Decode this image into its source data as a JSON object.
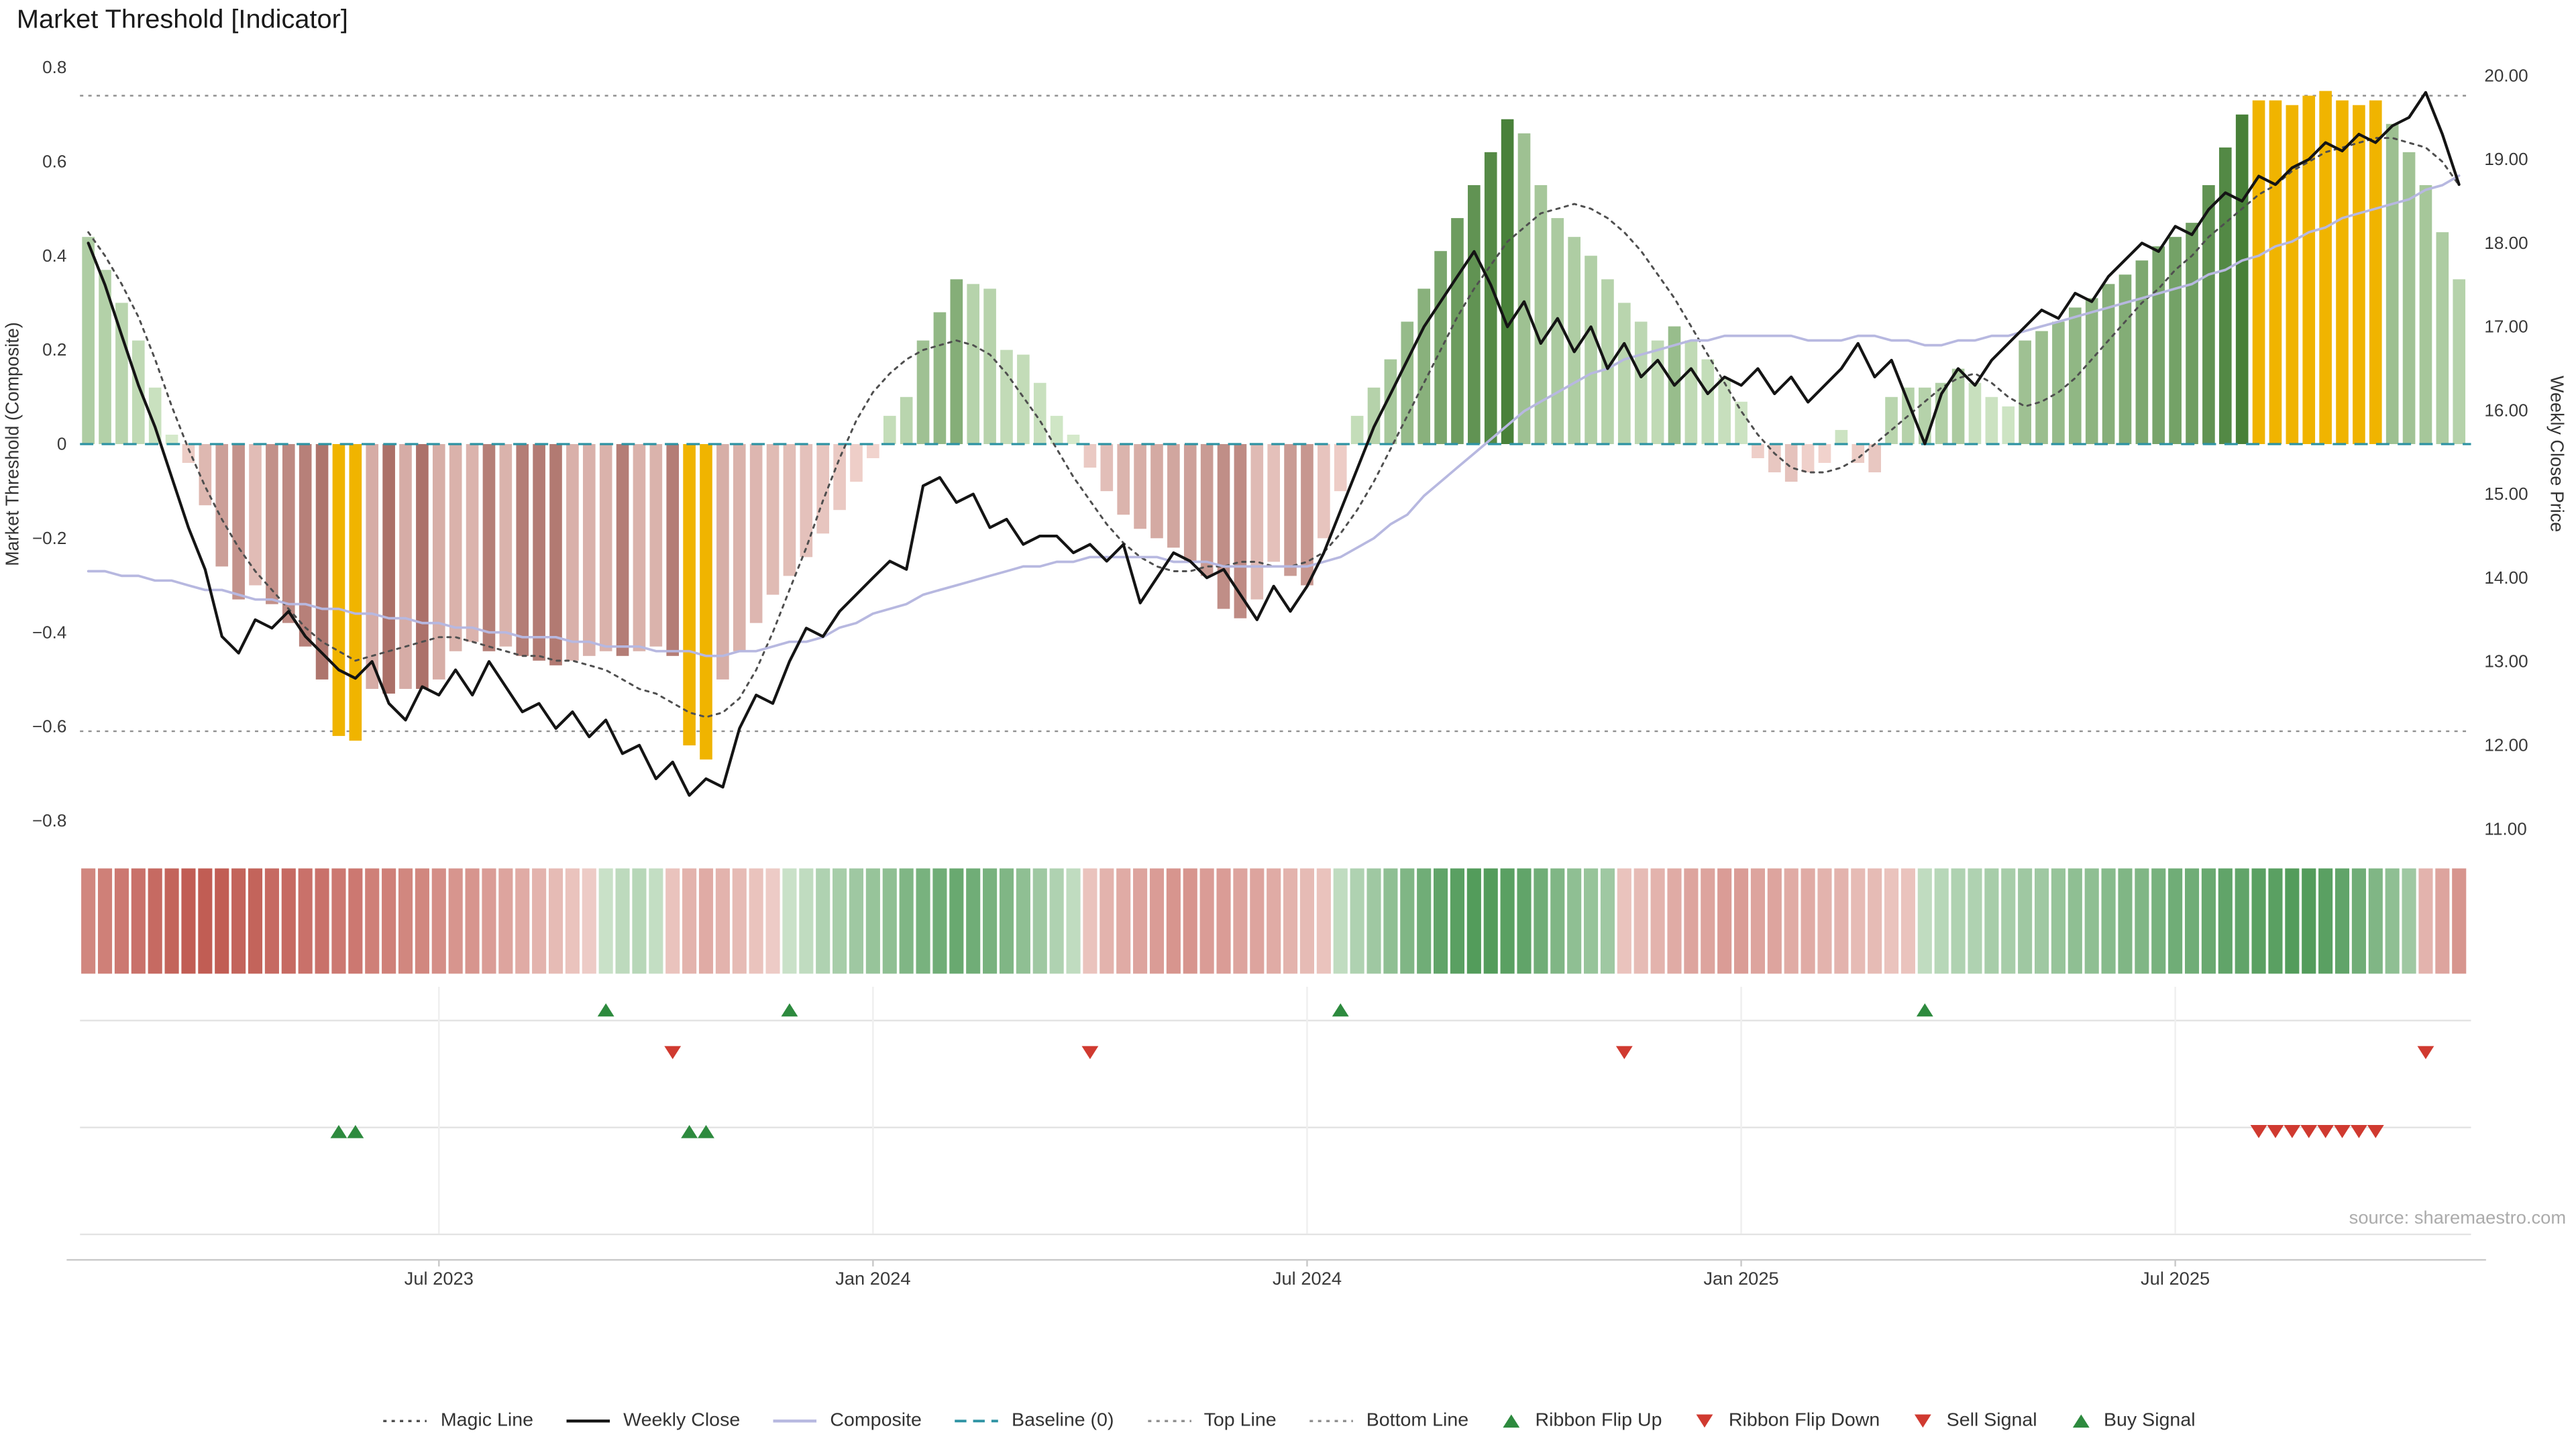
{
  "title": "Market Threshold [Indicator]",
  "source_text": "source: sharemaestro.com",
  "axes": {
    "left_label": "Market Threshold (Composite)",
    "right_label": "Weekly Close Price",
    "left_ticks": [
      0.8,
      0.6,
      0.4,
      0.2,
      0,
      -0.2,
      -0.4,
      -0.6,
      -0.8
    ],
    "left_tick_labels": [
      "0.8",
      "0.6",
      "0.4",
      "0.2",
      "0",
      "−0.2",
      "−0.4",
      "−0.6",
      "−0.8"
    ],
    "right_ticks": [
      20,
      19,
      18,
      17,
      16,
      15,
      14,
      13,
      12,
      11
    ],
    "right_tick_labels": [
      "20.00",
      "19.00",
      "18.00",
      "17.00",
      "16.00",
      "15.00",
      "14.00",
      "13.00",
      "12.00",
      "11.00"
    ],
    "x_ticks": [
      {
        "index": 21,
        "label": "Jul 2023"
      },
      {
        "index": 47,
        "label": "Jan 2024"
      },
      {
        "index": 73,
        "label": "Jul 2024"
      },
      {
        "index": 99,
        "label": "Jan 2025"
      },
      {
        "index": 125,
        "label": "Jul 2025"
      }
    ]
  },
  "chart_data": {
    "type": "bar",
    "title": "Market Threshold [Indicator]",
    "x_unit": "week",
    "left_axis_range": [
      -0.8,
      0.8
    ],
    "right_axis_range": [
      11,
      20
    ],
    "grid": false,
    "legend_position": "bottom",
    "reference_lines": {
      "baseline": 0,
      "top_line": 0.74,
      "bottom_line": -0.61
    },
    "series": {
      "threshold_bars": [
        0.44,
        0.37,
        0.3,
        0.22,
        0.12,
        0.02,
        -0.04,
        -0.13,
        -0.26,
        -0.33,
        -0.3,
        -0.34,
        -0.38,
        -0.43,
        -0.5,
        -0.62,
        -0.63,
        -0.52,
        -0.53,
        -0.52,
        -0.52,
        -0.5,
        -0.44,
        -0.42,
        -0.44,
        -0.43,
        -0.45,
        -0.46,
        -0.47,
        -0.46,
        -0.45,
        -0.44,
        -0.45,
        -0.44,
        -0.43,
        -0.45,
        -0.64,
        -0.67,
        -0.5,
        -0.44,
        -0.38,
        -0.32,
        -0.28,
        -0.24,
        -0.19,
        -0.14,
        -0.08,
        -0.03,
        0.06,
        0.1,
        0.22,
        0.28,
        0.35,
        0.34,
        0.33,
        0.2,
        0.19,
        0.13,
        0.06,
        0.02,
        -0.05,
        -0.1,
        -0.15,
        -0.18,
        -0.2,
        -0.22,
        -0.25,
        -0.28,
        -0.35,
        -0.37,
        -0.33,
        -0.25,
        -0.28,
        -0.3,
        -0.2,
        -0.1,
        0.06,
        0.12,
        0.18,
        0.26,
        0.33,
        0.41,
        0.48,
        0.55,
        0.62,
        0.69,
        0.66,
        0.55,
        0.48,
        0.44,
        0.4,
        0.35,
        0.3,
        0.26,
        0.22,
        0.25,
        0.22,
        0.18,
        0.14,
        0.09,
        -0.03,
        -0.06,
        -0.08,
        -0.06,
        -0.04,
        0.03,
        -0.04,
        -0.06,
        0.1,
        0.12,
        0.12,
        0.13,
        0.16,
        0.13,
        0.1,
        0.08,
        0.22,
        0.24,
        0.26,
        0.29,
        0.31,
        0.34,
        0.36,
        0.39,
        0.42,
        0.44,
        0.47,
        0.55,
        0.63,
        0.7,
        0.73,
        0.73,
        0.72,
        0.74,
        0.75,
        0.73,
        0.72,
        0.73,
        0.68,
        0.62,
        0.55,
        0.45,
        0.35
      ],
      "gold_bar_indices": [
        15,
        16,
        36,
        37,
        130,
        131,
        132,
        133,
        134,
        135,
        136,
        137
      ],
      "weekly_close": [
        18.0,
        17.5,
        16.9,
        16.3,
        15.8,
        15.2,
        14.6,
        14.1,
        13.3,
        13.1,
        13.5,
        13.4,
        13.6,
        13.3,
        13.1,
        12.9,
        12.8,
        13.0,
        12.5,
        12.3,
        12.7,
        12.6,
        12.9,
        12.6,
        13.0,
        12.7,
        12.4,
        12.5,
        12.2,
        12.4,
        12.1,
        12.3,
        11.9,
        12.0,
        11.6,
        11.8,
        11.4,
        11.6,
        11.5,
        12.2,
        12.6,
        12.5,
        13.0,
        13.4,
        13.3,
        13.6,
        13.8,
        14.0,
        14.2,
        14.1,
        15.1,
        15.2,
        14.9,
        15.0,
        14.6,
        14.7,
        14.4,
        14.5,
        14.5,
        14.3,
        14.4,
        14.2,
        14.4,
        13.7,
        14.0,
        14.3,
        14.2,
        14.0,
        14.1,
        13.8,
        13.5,
        13.9,
        13.6,
        13.9,
        14.3,
        14.8,
        15.3,
        15.8,
        16.2,
        16.6,
        17.0,
        17.3,
        17.6,
        17.9,
        17.5,
        17.0,
        17.3,
        16.8,
        17.1,
        16.7,
        17.0,
        16.5,
        16.8,
        16.4,
        16.6,
        16.3,
        16.5,
        16.2,
        16.4,
        16.3,
        16.5,
        16.2,
        16.4,
        16.1,
        16.3,
        16.5,
        16.8,
        16.4,
        16.6,
        16.1,
        15.6,
        16.2,
        16.5,
        16.3,
        16.6,
        16.8,
        17.0,
        17.2,
        17.1,
        17.4,
        17.3,
        17.6,
        17.8,
        18.0,
        17.9,
        18.2,
        18.1,
        18.4,
        18.6,
        18.5,
        18.8,
        18.7,
        18.9,
        19.0,
        19.2,
        19.1,
        19.3,
        19.2,
        19.4,
        19.5,
        19.8,
        19.3,
        18.7
      ],
      "composite": [
        -0.27,
        -0.27,
        -0.28,
        -0.28,
        -0.29,
        -0.29,
        -0.3,
        -0.31,
        -0.31,
        -0.32,
        -0.33,
        -0.33,
        -0.34,
        -0.34,
        -0.35,
        -0.35,
        -0.36,
        -0.36,
        -0.37,
        -0.37,
        -0.38,
        -0.38,
        -0.39,
        -0.39,
        -0.4,
        -0.4,
        -0.41,
        -0.41,
        -0.41,
        -0.42,
        -0.42,
        -0.43,
        -0.43,
        -0.43,
        -0.44,
        -0.44,
        -0.44,
        -0.45,
        -0.45,
        -0.44,
        -0.44,
        -0.43,
        -0.42,
        -0.42,
        -0.41,
        -0.39,
        -0.38,
        -0.36,
        -0.35,
        -0.34,
        -0.32,
        -0.31,
        -0.3,
        -0.29,
        -0.28,
        -0.27,
        -0.26,
        -0.26,
        -0.25,
        -0.25,
        -0.24,
        -0.24,
        -0.24,
        -0.24,
        -0.24,
        -0.25,
        -0.25,
        -0.25,
        -0.26,
        -0.26,
        -0.26,
        -0.26,
        -0.26,
        -0.26,
        -0.25,
        -0.24,
        -0.22,
        -0.2,
        -0.17,
        -0.15,
        -0.11,
        -0.08,
        -0.05,
        -0.02,
        0.01,
        0.04,
        0.07,
        0.09,
        0.11,
        0.13,
        0.15,
        0.16,
        0.18,
        0.19,
        0.2,
        0.21,
        0.22,
        0.22,
        0.23,
        0.23,
        0.23,
        0.23,
        0.23,
        0.22,
        0.22,
        0.22,
        0.23,
        0.23,
        0.22,
        0.22,
        0.21,
        0.21,
        0.22,
        0.22,
        0.23,
        0.23,
        0.24,
        0.25,
        0.26,
        0.27,
        0.28,
        0.29,
        0.3,
        0.31,
        0.32,
        0.33,
        0.34,
        0.36,
        0.37,
        0.39,
        0.4,
        0.42,
        0.43,
        0.45,
        0.46,
        0.48,
        0.49,
        0.5,
        0.51,
        0.52,
        0.54,
        0.55,
        0.57
      ],
      "magic_line": [
        0.45,
        0.4,
        0.34,
        0.27,
        0.18,
        0.08,
        -0.01,
        -0.09,
        -0.16,
        -0.22,
        -0.27,
        -0.31,
        -0.35,
        -0.39,
        -0.42,
        -0.44,
        -0.46,
        -0.45,
        -0.44,
        -0.43,
        -0.42,
        -0.41,
        -0.41,
        -0.42,
        -0.43,
        -0.44,
        -0.45,
        -0.45,
        -0.46,
        -0.46,
        -0.47,
        -0.48,
        -0.5,
        -0.52,
        -0.53,
        -0.55,
        -0.57,
        -0.58,
        -0.57,
        -0.54,
        -0.48,
        -0.4,
        -0.31,
        -0.22,
        -0.12,
        -0.03,
        0.05,
        0.11,
        0.15,
        0.18,
        0.2,
        0.21,
        0.22,
        0.21,
        0.19,
        0.15,
        0.1,
        0.05,
        -0.01,
        -0.07,
        -0.12,
        -0.17,
        -0.21,
        -0.24,
        -0.26,
        -0.27,
        -0.27,
        -0.26,
        -0.26,
        -0.25,
        -0.25,
        -0.26,
        -0.26,
        -0.25,
        -0.23,
        -0.19,
        -0.14,
        -0.08,
        -0.01,
        0.06,
        0.13,
        0.2,
        0.27,
        0.33,
        0.38,
        0.43,
        0.46,
        0.49,
        0.5,
        0.51,
        0.5,
        0.48,
        0.45,
        0.41,
        0.36,
        0.31,
        0.25,
        0.19,
        0.13,
        0.07,
        0.02,
        -0.02,
        -0.05,
        -0.06,
        -0.06,
        -0.05,
        -0.03,
        0.0,
        0.03,
        0.06,
        0.09,
        0.12,
        0.14,
        0.15,
        0.13,
        0.1,
        0.08,
        0.09,
        0.11,
        0.14,
        0.18,
        0.22,
        0.26,
        0.3,
        0.33,
        0.37,
        0.4,
        0.44,
        0.47,
        0.5,
        0.53,
        0.55,
        0.58,
        0.6,
        0.62,
        0.63,
        0.64,
        0.65,
        0.65,
        0.64,
        0.63,
        0.6,
        0.55
      ],
      "ribbon": [
        -0.6,
        -0.65,
        -0.7,
        -0.75,
        -0.8,
        -0.85,
        -0.9,
        -0.9,
        -0.9,
        -0.85,
        -0.85,
        -0.8,
        -0.8,
        -0.75,
        -0.75,
        -0.7,
        -0.7,
        -0.65,
        -0.65,
        -0.6,
        -0.6,
        -0.55,
        -0.5,
        -0.5,
        -0.45,
        -0.4,
        -0.35,
        -0.3,
        -0.25,
        -0.2,
        -0.15,
        0.15,
        0.22,
        0.25,
        0.18,
        -0.2,
        -0.3,
        -0.35,
        -0.3,
        -0.25,
        -0.2,
        -0.15,
        0.15,
        0.2,
        0.3,
        0.35,
        0.4,
        0.45,
        0.5,
        0.6,
        0.65,
        0.7,
        0.75,
        0.7,
        0.65,
        0.6,
        0.5,
        0.4,
        0.3,
        0.2,
        -0.2,
        -0.3,
        -0.35,
        -0.4,
        -0.45,
        -0.5,
        -0.5,
        -0.45,
        -0.45,
        -0.4,
        -0.4,
        -0.35,
        -0.3,
        -0.25,
        -0.2,
        0.2,
        0.3,
        0.4,
        0.5,
        0.6,
        0.7,
        0.8,
        0.85,
        0.9,
        0.9,
        0.85,
        0.8,
        0.7,
        0.6,
        0.5,
        0.45,
        0.4,
        -0.2,
        -0.25,
        -0.3,
        -0.35,
        -0.4,
        -0.4,
        -0.45,
        -0.45,
        -0.4,
        -0.4,
        -0.35,
        -0.35,
        -0.3,
        -0.3,
        -0.25,
        -0.25,
        -0.2,
        -0.2,
        0.2,
        0.25,
        0.3,
        0.3,
        0.35,
        0.35,
        0.4,
        0.4,
        0.45,
        0.5,
        0.5,
        0.55,
        0.6,
        0.6,
        0.65,
        0.7,
        0.7,
        0.75,
        0.8,
        0.8,
        0.85,
        0.85,
        0.9,
        0.9,
        0.85,
        0.8,
        0.7,
        0.6,
        0.5,
        0.4,
        -0.3,
        -0.4,
        -0.5
      ]
    },
    "signals": {
      "ribbon_flip_up": [
        31,
        42,
        75,
        110
      ],
      "ribbon_flip_down": [
        35,
        60,
        92,
        140
      ],
      "buy_signals": [
        15,
        16,
        36,
        37
      ],
      "sell_signals": [
        130,
        131,
        132,
        133,
        134,
        135,
        136,
        137
      ]
    }
  },
  "colors": {
    "gold": "#f0b400",
    "pos_light": "#d8ecce",
    "pos_dark": "#3f7a30",
    "neg_light": "#f4d7d1",
    "neg_dark": "#97544c",
    "rib_pos_light": "#e6f2e3",
    "rib_pos_dark": "#44934e",
    "rib_neg_light": "#f8e6e2",
    "rib_neg_dark": "#bb4f46",
    "close_line": "#141414",
    "composite_line": "#b7b8e0",
    "magic_line": "#4f4f4f",
    "baseline": "#2e93a3",
    "ref_line": "#909090",
    "flip_up": "#2d8a3e",
    "flip_down": "#d03a30",
    "buy": "#2d8a3e",
    "sell": "#d03a30",
    "tick_text": "#3a3a3a",
    "panel_line": "#e3e3e3",
    "panel_grid": "#efefef",
    "axis_line": "#c9c9c9"
  },
  "legend": [
    {
      "label": "Magic Line",
      "marker": "dotted-line",
      "color": "#4f4f4f"
    },
    {
      "label": "Weekly Close",
      "marker": "solid-line",
      "color": "#141414"
    },
    {
      "label": "Composite",
      "marker": "solid-line",
      "color": "#b7b8e0"
    },
    {
      "label": "Baseline (0)",
      "marker": "dashed-line",
      "color": "#2e93a3"
    },
    {
      "label": "Top Line",
      "marker": "dotted-line",
      "color": "#909090"
    },
    {
      "label": "Bottom Line",
      "marker": "dotted-line",
      "color": "#909090"
    },
    {
      "label": "Ribbon Flip Up",
      "marker": "triangle-up",
      "color": "#2d8a3e"
    },
    {
      "label": "Ribbon Flip Down",
      "marker": "triangle-down",
      "color": "#d03a30"
    },
    {
      "label": "Sell Signal",
      "marker": "triangle-down",
      "color": "#d03a30"
    },
    {
      "label": "Buy Signal",
      "marker": "triangle-up",
      "color": "#2d8a3e"
    }
  ]
}
